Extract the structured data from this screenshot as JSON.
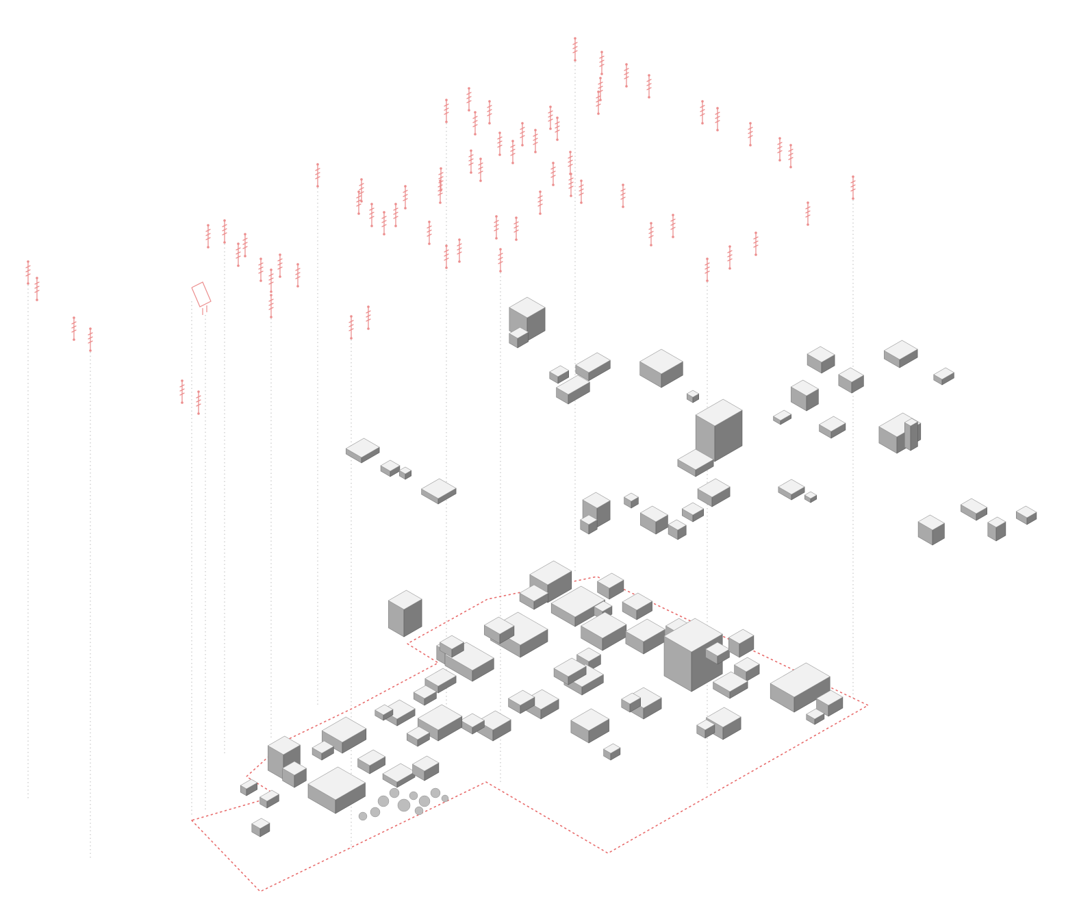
{
  "diagram": {
    "kind": "exploded-axonometric-urban-diagram",
    "colors": {
      "background": "#ffffff",
      "boundary": "#e86c6c",
      "poles": "#ec8e8e",
      "leader_lines": "#b9b9b9",
      "building_top": "#f1f1f1",
      "building_left": "#a9a9a9",
      "building_right": "#7c7c7c"
    },
    "layers": [
      {
        "name": "utility-poles",
        "icon": "utility-pole-icon"
      },
      {
        "name": "upper-building-layer",
        "icon": "building-block-icon"
      },
      {
        "name": "ground-building-layer",
        "icon": "building-block-icon"
      },
      {
        "name": "site-boundary",
        "icon": "dotted-boundary-icon"
      }
    ]
  }
}
